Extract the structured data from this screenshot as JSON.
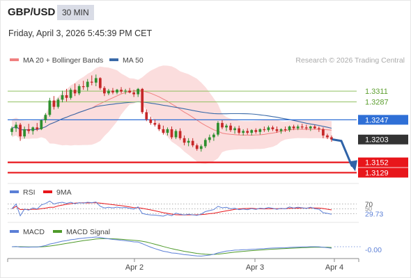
{
  "header": {
    "pair": "GBP/USD",
    "timeframe": "30 MIN",
    "datetime": "Friday, April 3, 2026 5:45:39 PM CET"
  },
  "chart_data": [
    {
      "type": "candlestick",
      "legend": [
        {
          "name": "MA 20 + Bollinger Bands",
          "color": "#f08080"
        },
        {
          "name": "MA 50",
          "color": "#3a6aa8"
        }
      ],
      "credit": "Research © 2026 Trading Central",
      "ylim": [
        1.3108,
        1.3367
      ],
      "x_labels": [
        "Apr 2",
        "Apr 3",
        "Apr 4"
      ],
      "levels": [
        {
          "value": 1.3311,
          "label": "1.3311",
          "style": "resistance",
          "color": "#8fc05f"
        },
        {
          "value": 1.3287,
          "label": "1.3287",
          "style": "resistance",
          "color": "#8fc05f"
        },
        {
          "value": 1.3247,
          "label": "1.3247",
          "style": "pivot",
          "color": "#2f6fd6"
        },
        {
          "value": 1.3203,
          "label": "1.3203",
          "style": "current",
          "color": "#333333"
        },
        {
          "value": 1.3152,
          "label": "1.3152",
          "style": "target",
          "color": "#e8161b"
        },
        {
          "value": 1.3129,
          "label": "1.3129",
          "style": "target",
          "color": "#e8161b"
        }
      ],
      "forecast_direction": "down",
      "candles": [
        [
          1.322,
          1.3232,
          1.3212,
          1.3228
        ],
        [
          1.3228,
          1.3242,
          1.322,
          1.3236
        ],
        [
          1.3236,
          1.324,
          1.32,
          1.321
        ],
        [
          1.321,
          1.3232,
          1.3205,
          1.3226
        ],
        [
          1.3226,
          1.3238,
          1.3216,
          1.3222
        ],
        [
          1.3222,
          1.3232,
          1.3214,
          1.323
        ],
        [
          1.323,
          1.324,
          1.3222,
          1.3226
        ],
        [
          1.3226,
          1.3248,
          1.3224,
          1.3246
        ],
        [
          1.3246,
          1.3262,
          1.324,
          1.3258
        ],
        [
          1.3258,
          1.3296,
          1.3254,
          1.329
        ],
        [
          1.329,
          1.33,
          1.327,
          1.3276
        ],
        [
          1.3276,
          1.3296,
          1.3272,
          1.3292
        ],
        [
          1.3292,
          1.3312,
          1.3286,
          1.3302
        ],
        [
          1.3302,
          1.3316,
          1.3288,
          1.3296
        ],
        [
          1.3296,
          1.3318,
          1.3292,
          1.3314
        ],
        [
          1.3314,
          1.3328,
          1.33,
          1.3306
        ],
        [
          1.3306,
          1.3326,
          1.3302,
          1.3322
        ],
        [
          1.3322,
          1.3334,
          1.3314,
          1.332
        ],
        [
          1.332,
          1.3338,
          1.3312,
          1.3332
        ],
        [
          1.3332,
          1.3346,
          1.3324,
          1.333
        ],
        [
          1.333,
          1.3348,
          1.3322,
          1.334
        ],
        [
          1.334,
          1.3342,
          1.3314,
          1.3318
        ],
        [
          1.3318,
          1.3322,
          1.33,
          1.3306
        ],
        [
          1.3306,
          1.3316,
          1.3302,
          1.3312
        ],
        [
          1.3312,
          1.3318,
          1.3304,
          1.3308
        ],
        [
          1.3308,
          1.3316,
          1.3304,
          1.3314
        ],
        [
          1.3314,
          1.332,
          1.3306,
          1.331
        ],
        [
          1.331,
          1.3316,
          1.3304,
          1.3312
        ],
        [
          1.3312,
          1.3318,
          1.3306,
          1.3308
        ],
        [
          1.3308,
          1.3314,
          1.3298,
          1.3304
        ],
        [
          1.3304,
          1.3318,
          1.3298,
          1.3316
        ],
        [
          1.3316,
          1.3318,
          1.326,
          1.3264
        ],
        [
          1.3264,
          1.327,
          1.3244,
          1.3248
        ],
        [
          1.3248,
          1.3254,
          1.3236,
          1.324
        ],
        [
          1.324,
          1.3248,
          1.3232,
          1.3236
        ],
        [
          1.3236,
          1.324,
          1.3222,
          1.3226
        ],
        [
          1.3226,
          1.3234,
          1.3214,
          1.3218
        ],
        [
          1.3218,
          1.323,
          1.3212,
          1.3226
        ],
        [
          1.3226,
          1.3232,
          1.3204,
          1.3208
        ],
        [
          1.3208,
          1.3226,
          1.3204,
          1.3222
        ],
        [
          1.3222,
          1.3228,
          1.3202,
          1.3206
        ],
        [
          1.3206,
          1.3212,
          1.319,
          1.3196
        ],
        [
          1.3196,
          1.3206,
          1.3188,
          1.32
        ],
        [
          1.32,
          1.3206,
          1.3186,
          1.319
        ],
        [
          1.319,
          1.3194,
          1.3178,
          1.3182
        ],
        [
          1.3182,
          1.3192,
          1.3176,
          1.3188
        ],
        [
          1.3188,
          1.3206,
          1.3184,
          1.3202
        ],
        [
          1.3202,
          1.3214,
          1.3196,
          1.3208
        ],
        [
          1.3208,
          1.3218,
          1.32,
          1.3214
        ],
        [
          1.3214,
          1.3244,
          1.321,
          1.324
        ],
        [
          1.324,
          1.3246,
          1.3226,
          1.323
        ],
        [
          1.323,
          1.3238,
          1.3222,
          1.3234
        ],
        [
          1.3234,
          1.324,
          1.322,
          1.3224
        ],
        [
          1.3224,
          1.3232,
          1.3216,
          1.3228
        ],
        [
          1.3228,
          1.3234,
          1.3214,
          1.3218
        ],
        [
          1.3218,
          1.3226,
          1.3212,
          1.3222
        ],
        [
          1.3222,
          1.3228,
          1.3214,
          1.3218
        ],
        [
          1.3218,
          1.3226,
          1.3212,
          1.3224
        ],
        [
          1.3224,
          1.3228,
          1.3216,
          1.322
        ],
        [
          1.322,
          1.3228,
          1.3214,
          1.3226
        ],
        [
          1.3226,
          1.3232,
          1.322,
          1.3224
        ],
        [
          1.3224,
          1.3234,
          1.322,
          1.323
        ],
        [
          1.323,
          1.3234,
          1.3222,
          1.3226
        ],
        [
          1.3226,
          1.3232,
          1.3218,
          1.3222
        ],
        [
          1.3222,
          1.3228,
          1.3216,
          1.3226
        ],
        [
          1.3226,
          1.3232,
          1.322,
          1.3224
        ],
        [
          1.3224,
          1.3234,
          1.322,
          1.3232
        ],
        [
          1.3232,
          1.3236,
          1.3224,
          1.3228
        ],
        [
          1.3228,
          1.3236,
          1.3224,
          1.3232
        ],
        [
          1.3232,
          1.3238,
          1.3226,
          1.323
        ],
        [
          1.323,
          1.3236,
          1.3224,
          1.3228
        ],
        [
          1.3228,
          1.3234,
          1.3222,
          1.3232
        ],
        [
          1.3232,
          1.3236,
          1.3226,
          1.3228
        ],
        [
          1.3228,
          1.3232,
          1.322,
          1.3226
        ],
        [
          1.3226,
          1.323,
          1.3206,
          1.3212
        ],
        [
          1.3212,
          1.3216,
          1.3204,
          1.3208
        ],
        [
          1.3208,
          1.3212,
          1.3198,
          1.3203
        ]
      ]
    },
    {
      "type": "line",
      "title": "RSI",
      "series": [
        {
          "name": "RSI",
          "color": "#5b7fd6"
        },
        {
          "name": "9MA",
          "color": "#e8161b"
        }
      ],
      "ylim": [
        0,
        100
      ],
      "levels": [
        {
          "value": 70,
          "label": "70"
        },
        {
          "value": 50,
          "label": "50"
        },
        {
          "value": 30,
          "label": "30"
        }
      ],
      "last_value": "29.73"
    },
    {
      "type": "line",
      "title": "MACD",
      "series": [
        {
          "name": "MACD",
          "color": "#5b7fd6"
        },
        {
          "name": "MACD Signal",
          "color": "#4e9a2a"
        }
      ],
      "last_value": "-0.00"
    }
  ]
}
